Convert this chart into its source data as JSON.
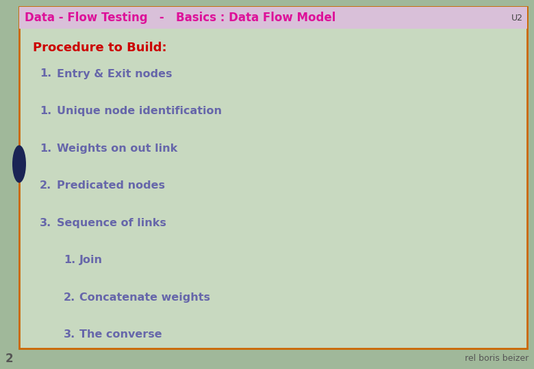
{
  "title": "Data - Flow Testing   -   Basics : Data Flow Model",
  "title_color": "#dd1199",
  "title_bg": "#d9c0d9",
  "corner_label": "U2",
  "corner_label_color": "#444444",
  "slide_bg": "#a0b89a",
  "inner_bg": "#c8d9c0",
  "border_color": "#cc6600",
  "procedure_heading": "Procedure to Build:",
  "procedure_color": "#cc0000",
  "items": [
    {
      "level": 1,
      "num": "1.",
      "text": "Entry & Exit nodes"
    },
    {
      "level": 1,
      "num": "1.",
      "text": "Unique node identification"
    },
    {
      "level": 1,
      "num": "1.",
      "text": "Weights on out link"
    },
    {
      "level": 1,
      "num": "2.",
      "text": "Predicated nodes"
    },
    {
      "level": 1,
      "num": "3.",
      "text": "Sequence of links"
    },
    {
      "level": 2,
      "num": "1.",
      "text": "Join"
    },
    {
      "level": 2,
      "num": "2.",
      "text": "Concatenate weights"
    },
    {
      "level": 2,
      "num": "3.",
      "text": "The converse"
    }
  ],
  "item_color": "#6666aa",
  "bottom_left": "2",
  "bottom_right": "rel boris beizer",
  "bottom_text_color": "#555555",
  "bottom_bg": "#a0b89a",
  "left_circle_color": "#1a2455",
  "figsize": [
    7.8,
    5.4
  ],
  "dpi": 100
}
